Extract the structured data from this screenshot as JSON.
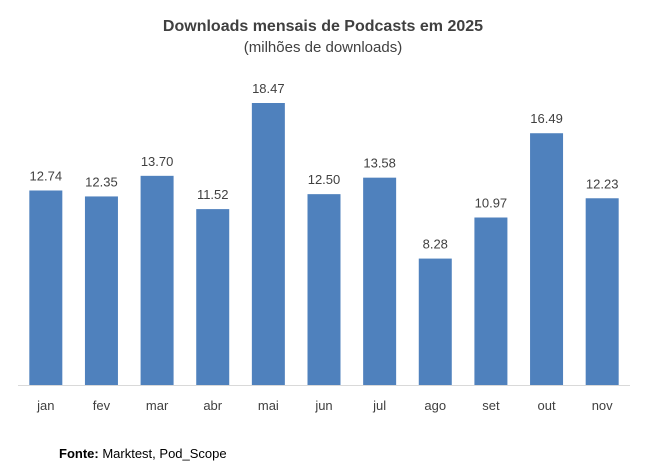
{
  "chart_data": {
    "type": "bar",
    "title": "Downloads mensais de Podcasts em 2025",
    "subtitle": "(milhões de downloads)",
    "categories": [
      "jan",
      "fev",
      "mar",
      "abr",
      "mai",
      "jun",
      "jul",
      "ago",
      "set",
      "out",
      "nov"
    ],
    "values": [
      12.74,
      12.35,
      13.7,
      11.52,
      18.47,
      12.5,
      13.58,
      8.28,
      10.97,
      16.49,
      12.23
    ],
    "value_labels": [
      "12.74",
      "12.35",
      "13.70",
      "11.52",
      "18.47",
      "12.50",
      "13.58",
      "8.28",
      "10.97",
      "16.49",
      "12.23"
    ],
    "xlabel": "",
    "ylabel": "",
    "ylim": [
      0,
      18.47
    ],
    "grid": false,
    "bar_color": "#4F81BD",
    "axis_color": "#D9D9D9"
  },
  "source": {
    "label": "Fonte:",
    "text": " Marktest, Pod_Scope"
  }
}
